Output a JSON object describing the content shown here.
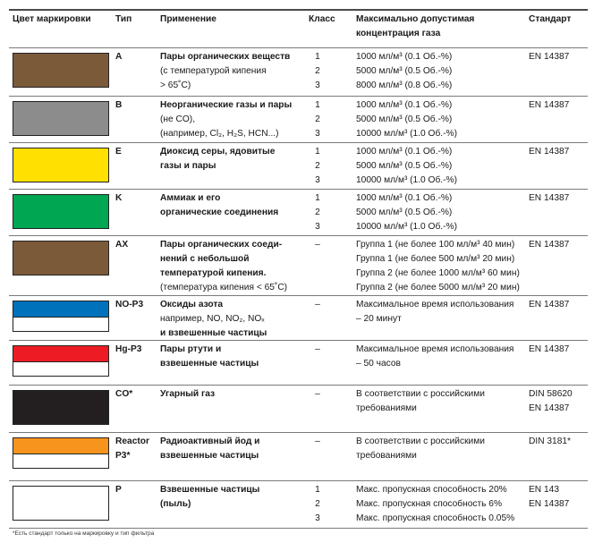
{
  "headers": {
    "color": "Цвет маркировки",
    "type": "Тип",
    "application": "Применение",
    "class": "Класс",
    "concentration": [
      "Максимально допустимая",
      "концентрация газа"
    ],
    "standard": "Стандарт"
  },
  "rows": [
    {
      "colors": [
        "#7b5a3a"
      ],
      "type": [
        "A"
      ],
      "application": [
        "Пары органических веществ",
        "(с температурой кипения",
        "> 65˚C)"
      ],
      "app_bold_lines": 1,
      "classes": [
        "1",
        "2",
        "3"
      ],
      "concentration": [
        "1000 мл/м³ (0.1 Об.-%)",
        "5000 мл/м³ (0.5 Об.-%)",
        "8000 мл/м³ (0.8 Об.-%)"
      ],
      "standard": [
        "EN 14387"
      ]
    },
    {
      "colors": [
        "#8c8c8c"
      ],
      "type": [
        "B"
      ],
      "application": [
        "Неорганические газы и пары",
        "(не CO),",
        "(например, Cl₂, H₂S, HCN...)"
      ],
      "app_bold_lines": 1,
      "classes": [
        "1",
        "2",
        "3"
      ],
      "concentration": [
        "1000 мл/м³ (0.1 Об.-%)",
        "5000 мл/м³ (0.5 Об.-%)",
        "10000 мл/м³ (1.0 Об.-%)"
      ],
      "standard": [
        "EN 14387"
      ]
    },
    {
      "colors": [
        "#ffe000"
      ],
      "type": [
        "E"
      ],
      "application": [
        "Диоксид серы, ядовитые",
        "газы и пары"
      ],
      "app_bold_lines": 2,
      "classes": [
        "1",
        "2",
        "3"
      ],
      "concentration": [
        "1000 мл/м³ (0.1 Об.-%)",
        "5000 мл/м³ (0.5 Об.-%)",
        "10000 мл/м³ (1.0 Об.-%)"
      ],
      "standard": [
        "EN 14387"
      ]
    },
    {
      "colors": [
        "#00a651"
      ],
      "type": [
        "K"
      ],
      "application": [
        "Аммиак и его",
        "органические соединения"
      ],
      "app_bold_lines": 2,
      "classes": [
        "1",
        "2",
        "3"
      ],
      "concentration": [
        "1000 мл/м³ (0.1 Об.-%)",
        "5000 мл/м³ (0.5 Об.-%)",
        "10000 мл/м³ (1.0 Об.-%)"
      ],
      "standard": [
        "EN 14387"
      ]
    },
    {
      "colors": [
        "#7b5a3a"
      ],
      "type": [
        "AX"
      ],
      "application": [
        "Пары органических соеди-",
        "нений с небольшой",
        "температурой кипения.",
        "(температура кипения < 65˚C)"
      ],
      "app_bold_lines": 3,
      "classes": [
        "–"
      ],
      "concentration": [
        "Группа 1 (не более 100 мл/м³ 40 мин)",
        "Группа 1 (не более 500 мл/м³ 20 мин)",
        "Группа 2 (не более 1000 мл/м³ 60 мин)",
        "Группа 2 (не более 5000 мл/м³ 20 мин)"
      ],
      "standard": [
        "EN 14387"
      ]
    },
    {
      "colors": [
        "#0072bc",
        "#ffffff"
      ],
      "type": [
        "NO-P3"
      ],
      "application": [
        "Оксиды азота",
        "например, NO, NO₂, NOₓ",
        "и взвешенные частицы"
      ],
      "app_bold_lines": 1,
      "app_bold_last": true,
      "classes": [
        "–"
      ],
      "concentration": [
        "Максимальное время использования",
        "– 20 минут"
      ],
      "standard": [
        "EN 14387"
      ]
    },
    {
      "colors": [
        "#ed1c24",
        "#ffffff"
      ],
      "type": [
        "Hg-P3"
      ],
      "application": [
        "Пары ртути и",
        "взвешенные частицы"
      ],
      "app_bold_lines": 2,
      "classes": [
        "–"
      ],
      "concentration": [
        "Максимальное время использования",
        "– 50 часов"
      ],
      "standard": [
        "EN 14387"
      ]
    },
    {
      "colors": [
        "#231f20"
      ],
      "type": [
        "CO*"
      ],
      "application": [
        "Угарный газ"
      ],
      "app_bold_lines": 1,
      "classes": [
        "–"
      ],
      "concentration": [
        "В соответствии с российскими",
        "требованиями"
      ],
      "standard": [
        "DIN 58620",
        "EN 14387"
      ]
    },
    {
      "colors": [
        "#f7941d",
        "#ffffff"
      ],
      "type": [
        "Reactor",
        "P3*"
      ],
      "application": [
        "Радиоактивный йод и",
        "взвешенные частицы"
      ],
      "app_bold_lines": 2,
      "classes": [
        "–"
      ],
      "concentration": [
        "В соответствии с российскими",
        "требованиями"
      ],
      "standard": [
        "DIN 3181*"
      ]
    },
    {
      "colors": [
        "#ffffff"
      ],
      "type": [
        "P"
      ],
      "application": [
        "Взвешенные частицы",
        "(пыль)"
      ],
      "app_bold_lines": 2,
      "classes": [
        "1",
        "2",
        "3"
      ],
      "concentration": [
        "Макс. пропускная способность 20%",
        "Макс. пропускная способность 6%",
        "Макс. пропускная способность 0.05%"
      ],
      "standard": [
        "EN 143",
        "EN 14387"
      ]
    }
  ],
  "footnote": "*Есть стандарт только на маркировку и тип фильтра"
}
